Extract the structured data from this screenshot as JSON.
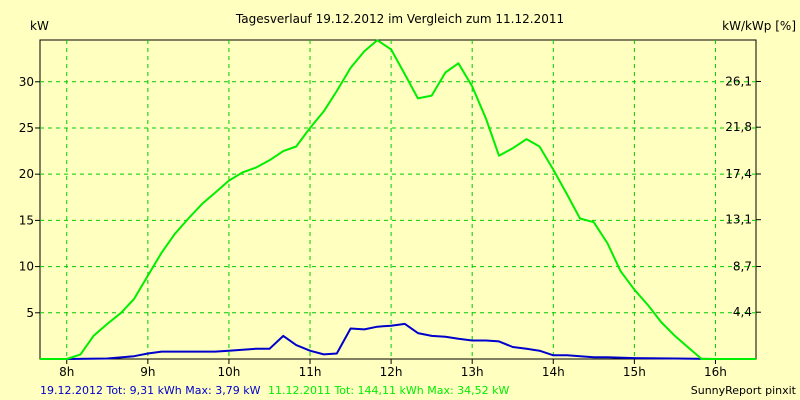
{
  "chart_data": {
    "type": "line",
    "title": "Tagesverlauf 19.12.2012 im Vergleich zum 11.12.2011",
    "ylabel_left": "kW",
    "ylabel_right": "kW/kWp [%]",
    "xlim": [
      7.67,
      16.5
    ],
    "ylim": [
      0,
      34.52
    ],
    "x_ticks": [
      8,
      9,
      10,
      11,
      12,
      13,
      14,
      15,
      16
    ],
    "x_tick_labels": [
      "8h",
      "9h",
      "10h",
      "11h",
      "12h",
      "13h",
      "14h",
      "15h",
      "16h"
    ],
    "y_ticks": [
      5,
      10,
      15,
      20,
      25,
      30
    ],
    "y_tick_labels": [
      "5",
      "10",
      "15",
      "20",
      "25",
      "30"
    ],
    "y2_ticks": [
      4.4,
      8.7,
      13.1,
      17.4,
      21.8,
      26.1
    ],
    "y2_tick_labels": [
      "4,4",
      "8,7",
      "13,1",
      "17,4",
      "21,8",
      "26,1"
    ],
    "y2_max": 30,
    "grid": true,
    "series": [
      {
        "name": "19.12.2012",
        "color": "#0000cc",
        "points": [
          [
            7.67,
            0
          ],
          [
            8.0,
            0
          ],
          [
            8.5,
            0.05
          ],
          [
            8.83,
            0.3
          ],
          [
            9.0,
            0.6
          ],
          [
            9.17,
            0.8
          ],
          [
            9.5,
            0.8
          ],
          [
            9.83,
            0.8
          ],
          [
            10.0,
            0.9
          ],
          [
            10.17,
            1.0
          ],
          [
            10.33,
            1.1
          ],
          [
            10.5,
            1.1
          ],
          [
            10.67,
            2.5
          ],
          [
            10.83,
            1.5
          ],
          [
            11.0,
            0.9
          ],
          [
            11.17,
            0.5
          ],
          [
            11.33,
            0.6
          ],
          [
            11.5,
            3.3
          ],
          [
            11.67,
            3.2
          ],
          [
            11.83,
            3.5
          ],
          [
            12.0,
            3.6
          ],
          [
            12.17,
            3.8
          ],
          [
            12.33,
            2.8
          ],
          [
            12.5,
            2.5
          ],
          [
            12.67,
            2.4
          ],
          [
            12.83,
            2.2
          ],
          [
            13.0,
            2.0
          ],
          [
            13.17,
            2.0
          ],
          [
            13.33,
            1.9
          ],
          [
            13.5,
            1.3
          ],
          [
            13.67,
            1.1
          ],
          [
            13.83,
            0.9
          ],
          [
            14.0,
            0.4
          ],
          [
            14.17,
            0.4
          ],
          [
            14.33,
            0.3
          ],
          [
            14.5,
            0.2
          ],
          [
            14.67,
            0.2
          ],
          [
            15.0,
            0.1
          ],
          [
            15.5,
            0.05
          ],
          [
            16.0,
            0
          ],
          [
            16.5,
            0
          ]
        ]
      },
      {
        "name": "11.12.2011",
        "color": "#00ee00",
        "points": [
          [
            7.67,
            0
          ],
          [
            8.0,
            0
          ],
          [
            8.17,
            0.5
          ],
          [
            8.33,
            2.5
          ],
          [
            8.5,
            3.8
          ],
          [
            8.67,
            5.0
          ],
          [
            8.83,
            6.5
          ],
          [
            9.0,
            9.0
          ],
          [
            9.17,
            11.5
          ],
          [
            9.33,
            13.5
          ],
          [
            9.5,
            15.2
          ],
          [
            9.67,
            16.8
          ],
          [
            9.83,
            18.0
          ],
          [
            10.0,
            19.3
          ],
          [
            10.17,
            20.2
          ],
          [
            10.33,
            20.7
          ],
          [
            10.5,
            21.5
          ],
          [
            10.67,
            22.5
          ],
          [
            10.83,
            23.0
          ],
          [
            11.0,
            25.0
          ],
          [
            11.17,
            26.8
          ],
          [
            11.33,
            29.0
          ],
          [
            11.5,
            31.5
          ],
          [
            11.67,
            33.3
          ],
          [
            11.83,
            34.5
          ],
          [
            12.0,
            33.5
          ],
          [
            12.17,
            30.8
          ],
          [
            12.33,
            28.2
          ],
          [
            12.5,
            28.5
          ],
          [
            12.67,
            31.0
          ],
          [
            12.83,
            32.0
          ],
          [
            13.0,
            29.5
          ],
          [
            13.17,
            26.0
          ],
          [
            13.33,
            22.0
          ],
          [
            13.5,
            22.8
          ],
          [
            13.67,
            23.8
          ],
          [
            13.83,
            23.0
          ],
          [
            14.0,
            20.5
          ],
          [
            14.17,
            17.8
          ],
          [
            14.33,
            15.2
          ],
          [
            14.5,
            14.8
          ],
          [
            14.67,
            12.5
          ],
          [
            14.83,
            9.5
          ],
          [
            15.0,
            7.5
          ],
          [
            15.17,
            5.8
          ],
          [
            15.33,
            4.0
          ],
          [
            15.5,
            2.5
          ],
          [
            15.67,
            1.2
          ],
          [
            15.83,
            0
          ],
          [
            16.0,
            0
          ],
          [
            16.5,
            0
          ]
        ]
      }
    ]
  },
  "legend": {
    "item1_label": "19.12.2012 Tot: 9,31 kWh Max: 3,79 kW",
    "item1_color": "#0000cc",
    "item2_label": "11.12.2011 Tot: 144,11 kWh Max: 34,52 kW",
    "item2_color": "#00ee00"
  },
  "footer": {
    "brand": "SunnyReport pinxit"
  }
}
